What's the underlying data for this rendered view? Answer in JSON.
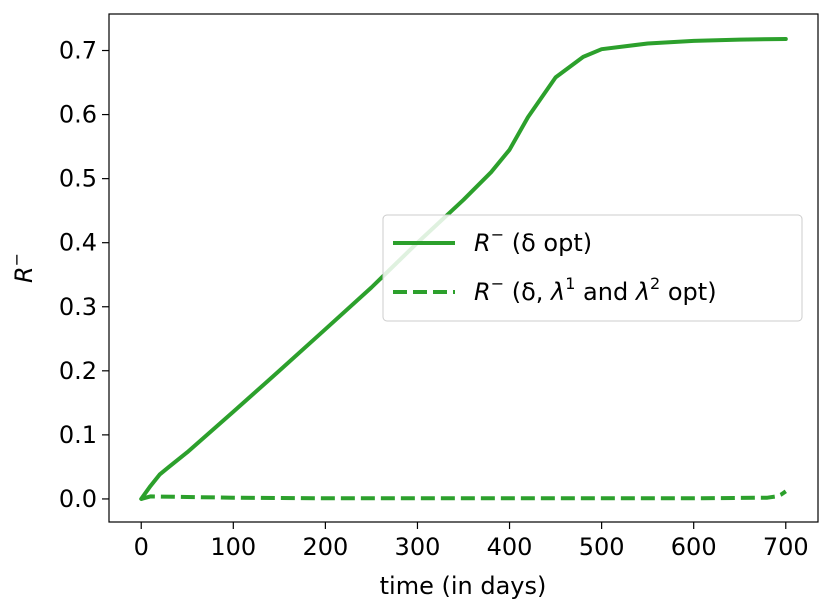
{
  "chart_data": {
    "type": "line",
    "xlabel": "time (in days)",
    "ylabel": "R⁻",
    "xlim": [
      -35,
      735
    ],
    "ylim": [
      -0.036,
      0.757
    ],
    "xticks": [
      0,
      100,
      200,
      300,
      400,
      500,
      600,
      700
    ],
    "yticks": [
      0.0,
      0.1,
      0.2,
      0.3,
      0.4,
      0.5,
      0.6,
      0.7
    ],
    "xtick_labels": [
      "0",
      "100",
      "200",
      "300",
      "400",
      "500",
      "600",
      "700"
    ],
    "ytick_labels": [
      "0.0",
      "0.1",
      "0.2",
      "0.3",
      "0.4",
      "0.5",
      "0.6",
      "0.7"
    ],
    "grid": false,
    "legend_position": "center-right",
    "color": "#2ca02c",
    "series": [
      {
        "name": "R⁻ (δ opt)",
        "style": "solid",
        "x": [
          0,
          10,
          20,
          30,
          50,
          100,
          150,
          200,
          250,
          300,
          350,
          380,
          400,
          420,
          450,
          480,
          500,
          550,
          600,
          650,
          700
        ],
        "y": [
          0.0,
          0.02,
          0.038,
          0.05,
          0.073,
          0.136,
          0.2,
          0.265,
          0.33,
          0.4,
          0.467,
          0.51,
          0.545,
          0.596,
          0.658,
          0.69,
          0.702,
          0.711,
          0.715,
          0.717,
          0.718
        ]
      },
      {
        "name": "R⁻ (δ, λ¹ and λ² opt)",
        "style": "dashed",
        "x": [
          0,
          10,
          50,
          100,
          200,
          300,
          400,
          500,
          600,
          680,
          690,
          695,
          700
        ],
        "y": [
          0.0,
          0.004,
          0.003,
          0.002,
          0.001,
          0.001,
          0.001,
          0.001,
          0.001,
          0.002,
          0.004,
          0.007,
          0.012
        ]
      }
    ]
  },
  "legend": {
    "solid": {
      "sym": "R",
      "sup": "−",
      "tail": " (δ opt)"
    },
    "dashed": {
      "sym": "R",
      "sup": "−",
      "mid": " (δ, ",
      "lam": "λ",
      "sup1": "1",
      "and": " and ",
      "sup2": "2",
      "tail": " opt)"
    }
  }
}
